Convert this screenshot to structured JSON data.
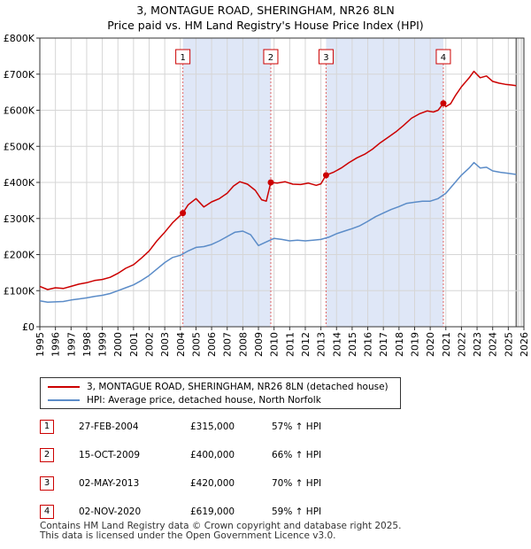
{
  "title_line1": "3, MONTAGUE ROAD, SHERINGHAM, NR26 8LN",
  "title_line2": "Price paid vs. HM Land Registry's House Price Index (HPI)",
  "colors": {
    "property": "#cc0000",
    "hpi": "#5b8cc8",
    "shade": "#dfe7f7",
    "marker_line": "#e06666"
  },
  "chart_data": {
    "type": "line",
    "x_range": [
      1995,
      2026
    ],
    "y_range": [
      0,
      800000
    ],
    "y_ticks": [
      0,
      100000,
      200000,
      300000,
      400000,
      500000,
      600000,
      700000,
      800000
    ],
    "y_tick_labels": [
      "£0",
      "£100K",
      "£200K",
      "£300K",
      "£400K",
      "£500K",
      "£600K",
      "£700K",
      "£800K"
    ],
    "x_ticks": [
      1995,
      1996,
      1997,
      1998,
      1999,
      2000,
      2001,
      2002,
      2003,
      2004,
      2005,
      2006,
      2007,
      2008,
      2009,
      2010,
      2011,
      2012,
      2013,
      2014,
      2015,
      2016,
      2017,
      2018,
      2019,
      2020,
      2021,
      2022,
      2023,
      2024,
      2025,
      2026
    ],
    "future_start": 2025.5,
    "shaded_spans": [
      [
        2004.16,
        2009.79
      ],
      [
        2013.33,
        2020.84
      ]
    ],
    "series": [
      {
        "name": "3, MONTAGUE ROAD, SHERINGHAM, NR26 8LN (detached house)",
        "points": [
          [
            1995.0,
            112000
          ],
          [
            1995.5,
            103000
          ],
          [
            1996.0,
            108000
          ],
          [
            1996.5,
            106000
          ],
          [
            1997.0,
            112000
          ],
          [
            1997.5,
            118000
          ],
          [
            1998.0,
            122000
          ],
          [
            1998.5,
            128000
          ],
          [
            1999.0,
            131000
          ],
          [
            1999.5,
            137000
          ],
          [
            2000.0,
            148000
          ],
          [
            2000.5,
            162000
          ],
          [
            2001.0,
            172000
          ],
          [
            2001.5,
            190000
          ],
          [
            2002.0,
            210000
          ],
          [
            2002.5,
            238000
          ],
          [
            2003.0,
            262000
          ],
          [
            2003.5,
            288000
          ],
          [
            2004.16,
            315000
          ],
          [
            2004.5,
            338000
          ],
          [
            2005.0,
            355000
          ],
          [
            2005.5,
            332000
          ],
          [
            2006.0,
            346000
          ],
          [
            2006.5,
            355000
          ],
          [
            2007.0,
            370000
          ],
          [
            2007.4,
            390000
          ],
          [
            2007.8,
            402000
          ],
          [
            2008.3,
            395000
          ],
          [
            2008.8,
            378000
          ],
          [
            2009.2,
            352000
          ],
          [
            2009.5,
            348000
          ],
          [
            2009.79,
            400000
          ],
          [
            2010.2,
            398000
          ],
          [
            2010.7,
            402000
          ],
          [
            2011.2,
            395000
          ],
          [
            2011.7,
            394000
          ],
          [
            2012.2,
            398000
          ],
          [
            2012.7,
            392000
          ],
          [
            2013.0,
            396000
          ],
          [
            2013.33,
            420000
          ],
          [
            2013.8,
            428000
          ],
          [
            2014.3,
            440000
          ],
          [
            2014.8,
            455000
          ],
          [
            2015.3,
            468000
          ],
          [
            2015.8,
            478000
          ],
          [
            2016.3,
            492000
          ],
          [
            2016.8,
            510000
          ],
          [
            2017.3,
            525000
          ],
          [
            2017.8,
            540000
          ],
          [
            2018.3,
            558000
          ],
          [
            2018.8,
            578000
          ],
          [
            2019.3,
            590000
          ],
          [
            2019.8,
            598000
          ],
          [
            2020.2,
            595000
          ],
          [
            2020.5,
            600000
          ],
          [
            2020.84,
            619000
          ],
          [
            2021.0,
            610000
          ],
          [
            2021.3,
            618000
          ],
          [
            2021.6,
            640000
          ],
          [
            2022.0,
            665000
          ],
          [
            2022.5,
            690000
          ],
          [
            2022.8,
            708000
          ],
          [
            2023.2,
            690000
          ],
          [
            2023.6,
            695000
          ],
          [
            2024.0,
            680000
          ],
          [
            2024.4,
            675000
          ],
          [
            2024.8,
            672000
          ],
          [
            2025.2,
            670000
          ],
          [
            2025.5,
            668000
          ]
        ]
      },
      {
        "name": "HPI: Average price, detached house, North Norfolk",
        "points": [
          [
            1995.0,
            72000
          ],
          [
            1995.5,
            68000
          ],
          [
            1996.0,
            69000
          ],
          [
            1996.5,
            70000
          ],
          [
            1997.0,
            74000
          ],
          [
            1997.5,
            77000
          ],
          [
            1998.0,
            80000
          ],
          [
            1998.5,
            84000
          ],
          [
            1999.0,
            87000
          ],
          [
            1999.5,
            92000
          ],
          [
            2000.0,
            100000
          ],
          [
            2000.5,
            108000
          ],
          [
            2001.0,
            116000
          ],
          [
            2001.5,
            128000
          ],
          [
            2002.0,
            142000
          ],
          [
            2002.5,
            160000
          ],
          [
            2003.0,
            178000
          ],
          [
            2003.5,
            192000
          ],
          [
            2004.0,
            198000
          ],
          [
            2004.5,
            210000
          ],
          [
            2005.0,
            220000
          ],
          [
            2005.5,
            222000
          ],
          [
            2006.0,
            228000
          ],
          [
            2006.5,
            238000
          ],
          [
            2007.0,
            250000
          ],
          [
            2007.5,
            262000
          ],
          [
            2008.0,
            265000
          ],
          [
            2008.5,
            255000
          ],
          [
            2009.0,
            225000
          ],
          [
            2009.5,
            235000
          ],
          [
            2010.0,
            245000
          ],
          [
            2010.5,
            242000
          ],
          [
            2011.0,
            238000
          ],
          [
            2011.5,
            240000
          ],
          [
            2012.0,
            238000
          ],
          [
            2012.5,
            240000
          ],
          [
            2013.0,
            242000
          ],
          [
            2013.5,
            248000
          ],
          [
            2014.0,
            258000
          ],
          [
            2014.5,
            265000
          ],
          [
            2015.0,
            272000
          ],
          [
            2015.5,
            280000
          ],
          [
            2016.0,
            292000
          ],
          [
            2016.5,
            305000
          ],
          [
            2017.0,
            315000
          ],
          [
            2017.5,
            325000
          ],
          [
            2018.0,
            333000
          ],
          [
            2018.5,
            342000
          ],
          [
            2019.0,
            345000
          ],
          [
            2019.5,
            348000
          ],
          [
            2020.0,
            348000
          ],
          [
            2020.5,
            355000
          ],
          [
            2021.0,
            370000
          ],
          [
            2021.5,
            395000
          ],
          [
            2022.0,
            420000
          ],
          [
            2022.5,
            440000
          ],
          [
            2022.8,
            455000
          ],
          [
            2023.2,
            440000
          ],
          [
            2023.6,
            442000
          ],
          [
            2024.0,
            432000
          ],
          [
            2024.5,
            428000
          ],
          [
            2025.0,
            425000
          ],
          [
            2025.5,
            422000
          ]
        ]
      }
    ],
    "sales": [
      {
        "id": "1",
        "x": 2004.16,
        "price": 315000,
        "date": "27-FEB-2004",
        "price_label": "£315,000",
        "hpi_label": "57% ↑ HPI"
      },
      {
        "id": "2",
        "x": 2009.79,
        "price": 400000,
        "date": "15-OCT-2009",
        "price_label": "£400,000",
        "hpi_label": "66% ↑ HPI"
      },
      {
        "id": "3",
        "x": 2013.33,
        "price": 420000,
        "date": "02-MAY-2013",
        "price_label": "£420,000",
        "hpi_label": "70% ↑ HPI"
      },
      {
        "id": "4",
        "x": 2020.84,
        "price": 619000,
        "date": "02-NOV-2020",
        "price_label": "£619,000",
        "hpi_label": "59% ↑ HPI"
      }
    ]
  },
  "legend": {
    "property": "3, MONTAGUE ROAD, SHERINGHAM, NR26 8LN (detached house)",
    "hpi": "HPI: Average price, detached house, North Norfolk"
  },
  "footer": {
    "line1": "Contains HM Land Registry data © Crown copyright and database right 2025.",
    "line2": "This data is licensed under the Open Government Licence v3.0."
  }
}
